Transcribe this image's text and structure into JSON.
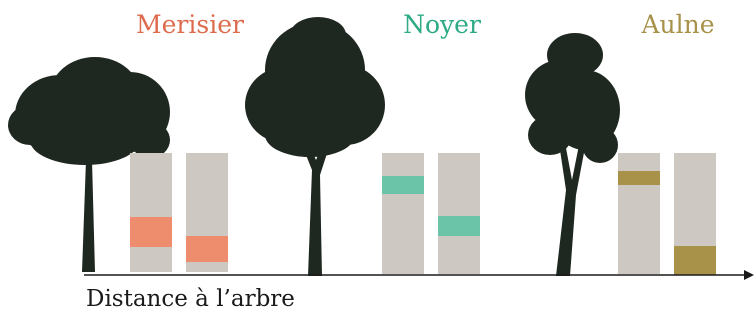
{
  "trees": [
    {
      "name": "Merisier"
    },
    {
      "name": "Noyer"
    },
    {
      "name": "Aulne"
    }
  ],
  "axis": {
    "label": "Distance à l’arbre"
  }
}
